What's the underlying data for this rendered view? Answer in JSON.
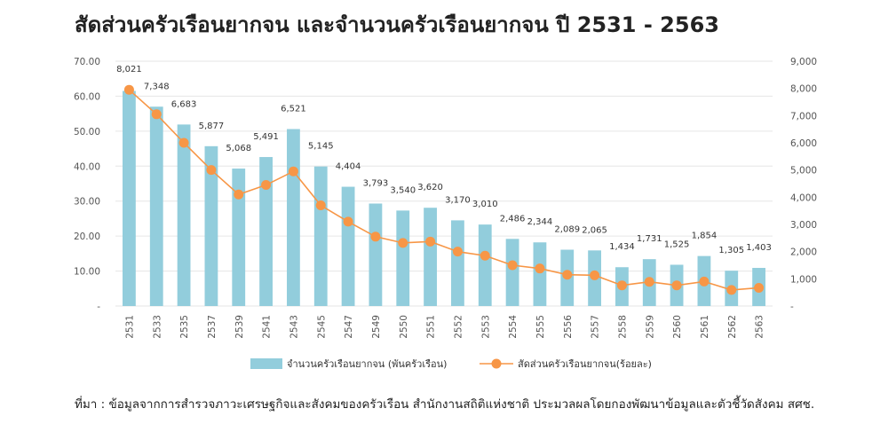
{
  "title": "สัดส่วนครัวเรือนยากจน และจำนวนครัวเรือนยากจน ปี 2531 - 2563",
  "source": "ที่มา : ข้อมูลจากการสำรวจภาวะเศรษฐกิจและสังคมของครัวเรือน สำนักงานสถิติแห่งชาติ ประมวลผลโดยกองพัฒนาข้อมูลและตัวชี้วัดสังคม สศช.",
  "colors": {
    "bar": "#92cddc",
    "line": "#f79646",
    "grid": "#e6e6e6"
  },
  "chart_data": {
    "type": "bar+line",
    "categories": [
      "2531",
      "2533",
      "2535",
      "2537",
      "2539",
      "2541",
      "2543",
      "2545",
      "2547",
      "2549",
      "2550",
      "2551",
      "2552",
      "2553",
      "2554",
      "2555",
      "2556",
      "2557",
      "2558",
      "2559",
      "2560",
      "2561",
      "2562",
      "2563"
    ],
    "y_left": {
      "ticks": [
        "-",
        "10.00",
        "20.00",
        "30.00",
        "40.00",
        "50.00",
        "60.00",
        "70.00"
      ],
      "min": 0,
      "max": 70
    },
    "y_right": {
      "ticks": [
        "-",
        "1,000",
        "2,000",
        "3,000",
        "4,000",
        "5,000",
        "6,000",
        "7,000",
        "8,000",
        "9,000"
      ],
      "min": 0,
      "max": 9000
    },
    "series": [
      {
        "name": "จำนวนครัวเรือนยากจน (พันครัวเรือน)",
        "type": "bar",
        "axis": "left",
        "values": [
          61.5,
          57.0,
          51.9,
          45.7,
          39.3,
          42.6,
          50.6,
          39.9,
          34.1,
          29.3,
          27.3,
          28.1,
          24.5,
          23.3,
          19.2,
          18.2,
          16.1,
          15.9,
          11.1,
          13.4,
          11.8,
          14.3,
          10.1,
          10.9
        ],
        "labels": [
          "8,021",
          "7,348",
          "6,683",
          "5,877",
          "5,068",
          "5,491",
          "6,521",
          "5,145",
          "4,404",
          "3,793",
          "3,540",
          "3,620",
          "3,170",
          "3,010",
          "2,486",
          "2,344",
          "2,089",
          "2,065",
          "1,434",
          "1,731",
          "1,525",
          "1,854",
          "1,305",
          "1,403"
        ]
      },
      {
        "name": "สัดส่วนครัวเรือนยากจน(ร้อยละ)",
        "type": "line",
        "axis": "right",
        "values": [
          7950,
          7050,
          6000,
          5000,
          4100,
          4450,
          4950,
          3700,
          3100,
          2550,
          2320,
          2370,
          2000,
          1850,
          1500,
          1380,
          1150,
          1130,
          760,
          890,
          760,
          900,
          590,
          670
        ]
      }
    ],
    "grid": true,
    "legend_position": "bottom"
  }
}
